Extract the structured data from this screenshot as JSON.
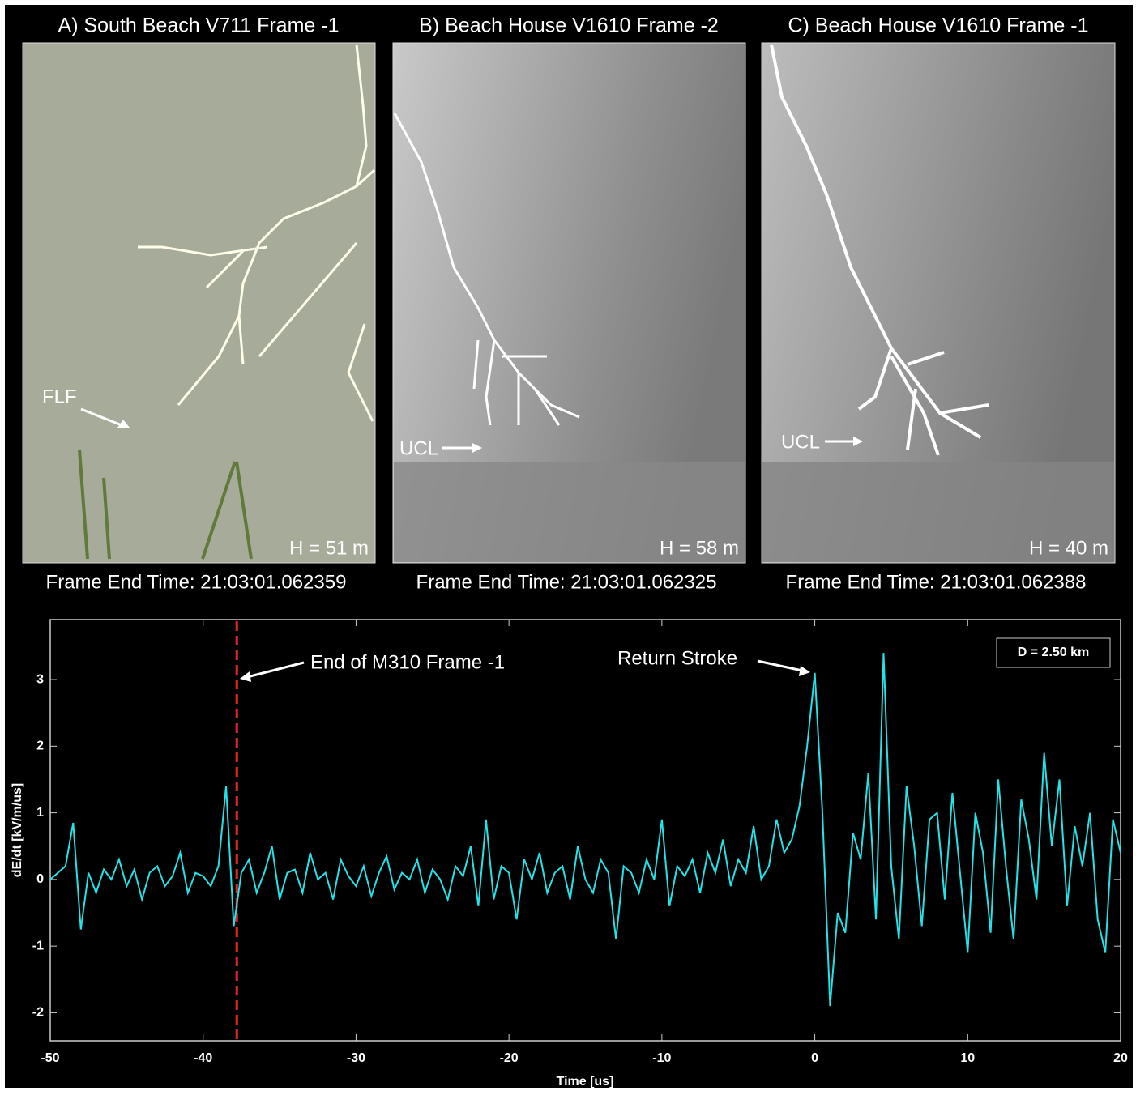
{
  "panels": [
    {
      "title": "A) South Beach V711 Frame -1",
      "label": "FLF",
      "height": "H = 51 m",
      "frame_time": "Frame End Time: 21:03:01.062359"
    },
    {
      "title": "B) Beach House V1610 Frame -2",
      "label": "UCL",
      "height": "H = 58 m",
      "frame_time": "Frame End Time:  21:03:01.062325"
    },
    {
      "title": "C) Beach House V1610 Frame -1",
      "label": "UCL",
      "height": "H = 40 m",
      "frame_time": "Frame End Time:  21:03:01.062388"
    }
  ],
  "chart_data": {
    "type": "line",
    "xlabel": "Time [us]",
    "ylabel": "dE/dt [kV/m/us]",
    "xlim": [
      -50,
      20
    ],
    "ylim": [
      -2.42,
      3.9
    ],
    "xticks": [
      -50,
      -40,
      -30,
      -20,
      -10,
      0,
      10,
      20
    ],
    "yticks": [
      -2,
      -1,
      0,
      1,
      2,
      3
    ],
    "marker_line": {
      "x": -37.8,
      "color": "#e8262a",
      "label": "End of M310 Frame -1"
    },
    "annotation": "Return Stroke",
    "legend_box": "D = 2.50 km",
    "series": [
      {
        "color": "#22e3e8",
        "x": [
          -50,
          -49.5,
          -49,
          -48.5,
          -48,
          -47.5,
          -47,
          -46.5,
          -46,
          -45.5,
          -45,
          -44.5,
          -44,
          -43.5,
          -43,
          -42.5,
          -42,
          -41.5,
          -41,
          -40.5,
          -40,
          -39.5,
          -39,
          -38.5,
          -38,
          -37.5,
          -37,
          -36.5,
          -36,
          -35.5,
          -35,
          -34.5,
          -34,
          -33.5,
          -33,
          -32.5,
          -32,
          -31.5,
          -31,
          -30.5,
          -30,
          -29.5,
          -29,
          -28.5,
          -28,
          -27.5,
          -27,
          -26.5,
          -26,
          -25.5,
          -25,
          -24.5,
          -24,
          -23.5,
          -23,
          -22.5,
          -22,
          -21.5,
          -21,
          -20.5,
          -20,
          -19.5,
          -19,
          -18.5,
          -18,
          -17.5,
          -17,
          -16.5,
          -16,
          -15.5,
          -15,
          -14.5,
          -14,
          -13.5,
          -13,
          -12.5,
          -12,
          -11.5,
          -11,
          -10.5,
          -10,
          -9.5,
          -9,
          -8.5,
          -8,
          -7.5,
          -7,
          -6.5,
          -6,
          -5.5,
          -5,
          -4.5,
          -4,
          -3.5,
          -3,
          -2.5,
          -2,
          -1.5,
          -1,
          -0.5,
          0,
          0.5,
          1,
          1.5,
          2,
          2.5,
          3,
          3.5,
          4,
          4.5,
          5,
          5.5,
          6,
          6.5,
          7,
          7.5,
          8,
          8.5,
          9,
          9.5,
          10,
          10.5,
          11,
          11.5,
          12,
          12.5,
          13,
          13.5,
          14,
          14.5,
          15,
          15.5,
          16,
          16.5,
          17,
          17.5,
          18,
          18.5,
          19,
          19.5,
          20
        ],
        "values": [
          0,
          0.1,
          0.2,
          0.85,
          -0.75,
          0.1,
          -0.2,
          0.15,
          0,
          0.3,
          -0.1,
          0.15,
          -0.3,
          0.1,
          0.2,
          -0.1,
          0.05,
          0.4,
          -0.2,
          0.1,
          0.05,
          -0.1,
          0.2,
          1.4,
          -0.7,
          0.1,
          0.3,
          -0.2,
          0.1,
          0.5,
          -0.3,
          0.1,
          0.15,
          -0.2,
          0.4,
          0,
          0.1,
          -0.3,
          0.3,
          0.05,
          -0.1,
          0.2,
          -0.25,
          0.1,
          0.35,
          -0.15,
          0.1,
          0,
          0.3,
          -0.2,
          0.15,
          0,
          -0.3,
          0.2,
          0.05,
          0.5,
          -0.4,
          0.9,
          -0.3,
          0.2,
          0.1,
          -0.6,
          0.3,
          0,
          0.4,
          -0.2,
          0.1,
          0.2,
          -0.3,
          0.5,
          0,
          -0.2,
          0.3,
          0.1,
          -0.9,
          0.2,
          0.1,
          -0.2,
          0.3,
          0,
          0.9,
          -0.4,
          0.2,
          0.05,
          0.3,
          -0.2,
          0.4,
          0.1,
          0.6,
          -0.1,
          0.3,
          0.1,
          0.8,
          0,
          0.2,
          0.9,
          0.4,
          0.6,
          1.1,
          2.0,
          3.1,
          1.0,
          -1.9,
          -0.5,
          -0.8,
          0.7,
          0.3,
          1.6,
          -0.6,
          3.4,
          0.2,
          -0.9,
          1.4,
          0.5,
          -0.7,
          0.9,
          1.0,
          -0.3,
          1.3,
          0.1,
          -1.1,
          1.0,
          0.4,
          -0.8,
          1.5,
          0.2,
          -0.9,
          1.2,
          0.6,
          -0.3,
          1.9,
          0.5,
          1.5,
          -0.4,
          0.8,
          0.2,
          1.0,
          -0.6,
          -1.1,
          0.9,
          0.4
        ]
      }
    ]
  }
}
